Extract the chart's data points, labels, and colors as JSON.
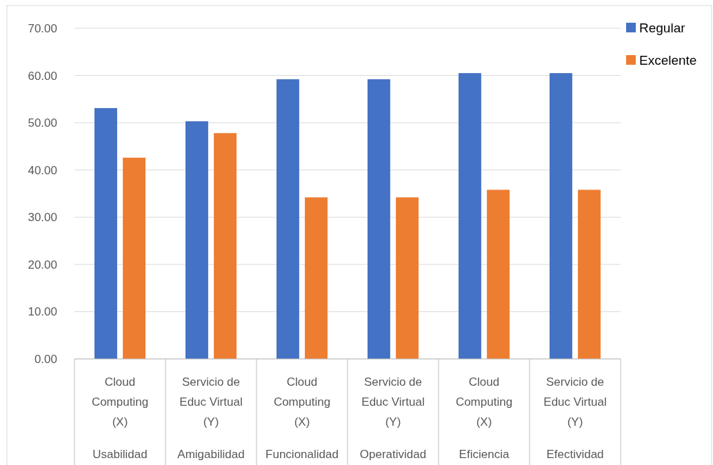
{
  "chart_data": {
    "type": "bar",
    "categories": [
      "Cloud Computing (X)",
      "Servicio de Educ Virtual (Y)",
      "Cloud Computing (X)",
      "Servicio de Educ Virtual (Y)",
      "Cloud Computing (X)",
      "Servicio de Educ Virtual (Y)"
    ],
    "annotations": [
      "Usabilidad",
      "Amigabilidad",
      "Funcionalidad",
      "Operatividad",
      "Eficiencia",
      "Efectividad"
    ],
    "series": [
      {
        "name": "Regular",
        "color": "#4472c4",
        "values": [
          53.1,
          50.3,
          59.2,
          59.2,
          60.5,
          60.5
        ]
      },
      {
        "name": "Excelente",
        "color": "#ed7d31",
        "values": [
          42.6,
          47.8,
          34.2,
          34.2,
          35.8,
          35.8
        ]
      }
    ],
    "ylim": [
      0,
      70
    ],
    "yticks": [
      {
        "value": 0,
        "label": "0.00"
      },
      {
        "value": 10,
        "label": "10.00"
      },
      {
        "value": 20,
        "label": "20.00"
      },
      {
        "value": 30,
        "label": "30.00"
      },
      {
        "value": 40,
        "label": "40.00"
      },
      {
        "value": 50,
        "label": "50.00"
      },
      {
        "value": 60,
        "label": "60.00"
      },
      {
        "value": 70,
        "label": "70.00"
      }
    ],
    "grid": "y",
    "legend": "right"
  }
}
